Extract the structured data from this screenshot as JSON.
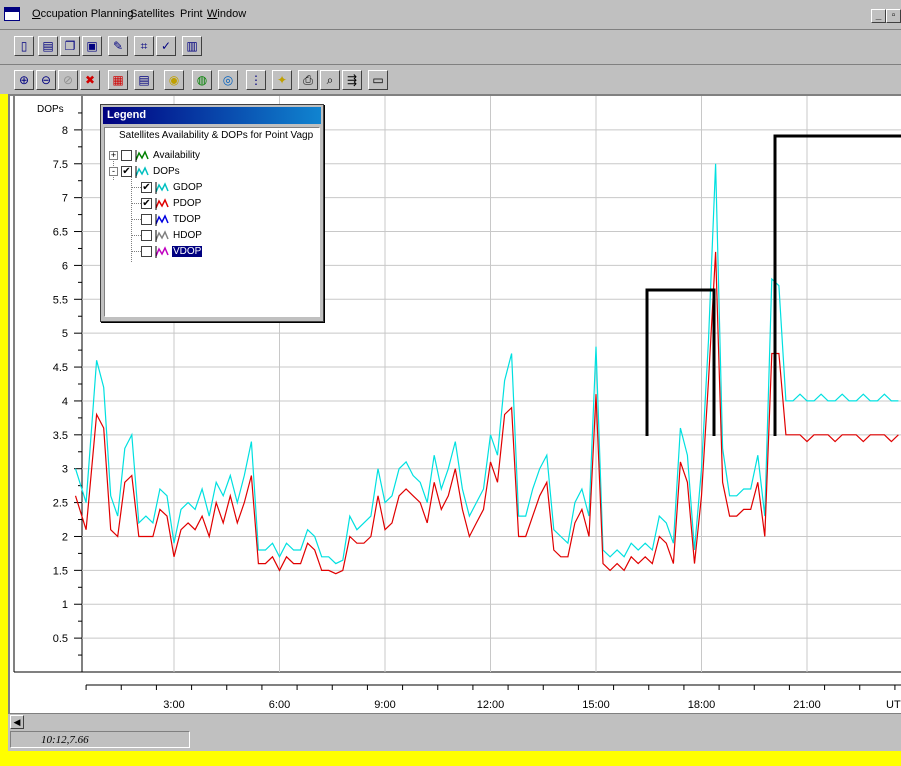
{
  "menubar": {
    "items": [
      "Occupation Planning",
      "Satellites",
      "Print",
      "Window"
    ]
  },
  "toolbar1": {
    "buttons": [
      "new-document-icon",
      "open-folder-icon",
      "copy-icon",
      "paste-icon",
      "edit-pen-icon",
      "satellite-grid-icon",
      "satellite-check-icon",
      "document-list-icon"
    ]
  },
  "toolbar2": {
    "buttons": [
      "zoom-in-icon",
      "zoom-out-icon",
      "zoom-disabled-icon",
      "delete-x-icon",
      "grid-icon",
      "report-icon",
      "sky-plot-icon",
      "elevation-icon",
      "globe-icon",
      "availability-icon",
      "dop-chart-icon",
      "print-icon",
      "print-preview-icon",
      "export-icon",
      "page-icon"
    ]
  },
  "legend": {
    "title": "Legend",
    "heading": "Satellites Availability & DOPs for Point Vagp",
    "items": [
      {
        "label": "Availability",
        "checked": false,
        "expander": "+",
        "color": "#008000",
        "level": 0
      },
      {
        "label": "DOPs",
        "checked": true,
        "expander": "-",
        "color": "#00c0c0",
        "level": 0
      },
      {
        "label": "GDOP",
        "checked": true,
        "color": "#00c0c0",
        "level": 1
      },
      {
        "label": "PDOP",
        "checked": true,
        "color": "#e00000",
        "level": 1
      },
      {
        "label": "TDOP",
        "checked": false,
        "color": "#0000e0",
        "level": 1
      },
      {
        "label": "HDOP",
        "checked": false,
        "color": "#808080",
        "level": 1
      },
      {
        "label": "VDOP",
        "checked": false,
        "color": "#c000c0",
        "level": 1,
        "selected": true
      }
    ]
  },
  "status": {
    "coords": "10:12,7.66"
  },
  "chart_data": {
    "type": "line",
    "ylabel": "DOPs",
    "ylim": [
      0,
      8.5
    ],
    "yticks": [
      "0.5",
      "1",
      "1.5",
      "2",
      "2.5",
      "3",
      "3.5",
      "4",
      "4.5",
      "5",
      "5.5",
      "6",
      "6.5",
      "7",
      "7.5",
      "8"
    ],
    "xlim": [
      0.2,
      23.6
    ],
    "xticks": [
      "3:00",
      "6:00",
      "9:00",
      "12:00",
      "15:00",
      "18:00",
      "21:00"
    ],
    "xtick_overflow": "UT",
    "grid": true,
    "series": [
      {
        "name": "GDOP",
        "color": "#00e0e0",
        "x": [
          0.2,
          0.5,
          0.8,
          1.0,
          1.2,
          1.4,
          1.6,
          1.8,
          2.0,
          2.2,
          2.4,
          2.6,
          2.8,
          3.0,
          3.2,
          3.4,
          3.6,
          3.8,
          4.0,
          4.2,
          4.4,
          4.6,
          4.8,
          5.0,
          5.2,
          5.4,
          5.6,
          5.8,
          6.0,
          6.2,
          6.4,
          6.6,
          6.8,
          7.0,
          7.2,
          7.4,
          7.6,
          7.8,
          8.0,
          8.2,
          8.4,
          8.6,
          8.8,
          9.0,
          9.2,
          9.4,
          9.6,
          9.8,
          10.0,
          10.2,
          10.4,
          10.6,
          10.8,
          11.0,
          11.2,
          11.4,
          11.6,
          11.8,
          12.0,
          12.2,
          12.4,
          12.6,
          12.8,
          13.0,
          13.2,
          13.4,
          13.6,
          13.8,
          14.0,
          14.2,
          14.4,
          14.6,
          14.8,
          15.0,
          15.2,
          15.4,
          15.6,
          15.8,
          16.0,
          16.2,
          16.4,
          16.6,
          16.8,
          17.0,
          17.2,
          17.4,
          17.6,
          17.8,
          18.0,
          18.2,
          18.4,
          18.6,
          18.8,
          19.0,
          19.2,
          19.4,
          19.6,
          19.8,
          20.0,
          20.2,
          20.4,
          20.6,
          20.8,
          21.0,
          21.2,
          21.4,
          21.6,
          21.8,
          22.0,
          22.2,
          22.4,
          22.6,
          22.8,
          23.0,
          23.2,
          23.4,
          23.6
        ],
        "y": [
          3.0,
          2.5,
          4.6,
          4.2,
          2.6,
          2.3,
          3.3,
          3.5,
          2.2,
          2.3,
          2.2,
          2.7,
          2.6,
          1.9,
          2.4,
          2.5,
          2.4,
          2.7,
          2.3,
          2.8,
          2.6,
          2.9,
          2.5,
          2.9,
          3.4,
          1.8,
          1.8,
          1.9,
          1.7,
          1.9,
          1.8,
          1.8,
          2.1,
          2.0,
          1.7,
          1.7,
          1.6,
          1.65,
          2.3,
          2.1,
          2.2,
          2.3,
          3.0,
          2.5,
          2.6,
          3.0,
          3.1,
          2.9,
          2.8,
          2.5,
          3.2,
          2.7,
          3.0,
          3.4,
          2.7,
          2.3,
          2.5,
          2.7,
          3.5,
          3.2,
          4.3,
          4.7,
          2.3,
          2.3,
          2.7,
          3.0,
          3.2,
          2.1,
          2.0,
          1.9,
          2.5,
          2.7,
          2.3,
          4.8,
          1.8,
          1.7,
          1.8,
          1.7,
          1.9,
          1.8,
          1.9,
          1.8,
          2.3,
          2.2,
          1.9,
          3.6,
          3.2,
          1.8,
          3.0,
          4.9,
          7.5,
          3.3,
          2.6,
          2.6,
          2.7,
          2.7,
          3.2,
          2.3,
          5.8,
          5.7,
          4.0,
          4.0,
          4.1,
          4.0,
          4.0,
          4.1,
          4.0,
          4.0,
          4.1,
          4.0,
          4.0,
          4.1,
          4.0,
          4.0,
          4.1,
          4.0,
          4.0
        ]
      },
      {
        "name": "PDOP",
        "color": "#e00000",
        "x": [
          0.2,
          0.5,
          0.8,
          1.0,
          1.2,
          1.4,
          1.6,
          1.8,
          2.0,
          2.2,
          2.4,
          2.6,
          2.8,
          3.0,
          3.2,
          3.4,
          3.6,
          3.8,
          4.0,
          4.2,
          4.4,
          4.6,
          4.8,
          5.0,
          5.2,
          5.4,
          5.6,
          5.8,
          6.0,
          6.2,
          6.4,
          6.6,
          6.8,
          7.0,
          7.2,
          7.4,
          7.6,
          7.8,
          8.0,
          8.2,
          8.4,
          8.6,
          8.8,
          9.0,
          9.2,
          9.4,
          9.6,
          9.8,
          10.0,
          10.2,
          10.4,
          10.6,
          10.8,
          11.0,
          11.2,
          11.4,
          11.6,
          11.8,
          12.0,
          12.2,
          12.4,
          12.6,
          12.8,
          13.0,
          13.2,
          13.4,
          13.6,
          13.8,
          14.0,
          14.2,
          14.4,
          14.6,
          14.8,
          15.0,
          15.2,
          15.4,
          15.6,
          15.8,
          16.0,
          16.2,
          16.4,
          16.6,
          16.8,
          17.0,
          17.2,
          17.4,
          17.6,
          17.8,
          18.0,
          18.2,
          18.4,
          18.6,
          18.8,
          19.0,
          19.2,
          19.4,
          19.6,
          19.8,
          20.0,
          20.2,
          20.4,
          20.6,
          20.8,
          21.0,
          21.2,
          21.4,
          21.6,
          21.8,
          22.0,
          22.2,
          22.4,
          22.6,
          22.8,
          23.0,
          23.2,
          23.4,
          23.6
        ],
        "y": [
          2.6,
          2.1,
          3.8,
          3.6,
          2.1,
          2.0,
          2.8,
          2.9,
          2.0,
          2.0,
          2.0,
          2.4,
          2.3,
          1.7,
          2.1,
          2.2,
          2.1,
          2.3,
          2.0,
          2.5,
          2.2,
          2.6,
          2.2,
          2.5,
          2.9,
          1.6,
          1.6,
          1.7,
          1.5,
          1.7,
          1.6,
          1.6,
          1.9,
          1.8,
          1.5,
          1.5,
          1.45,
          1.5,
          2.0,
          1.9,
          1.9,
          2.0,
          2.6,
          2.1,
          2.2,
          2.6,
          2.7,
          2.6,
          2.5,
          2.2,
          2.8,
          2.4,
          2.6,
          3.0,
          2.4,
          2.0,
          2.2,
          2.4,
          3.1,
          2.8,
          3.8,
          3.9,
          2.0,
          2.0,
          2.3,
          2.6,
          2.8,
          1.8,
          1.7,
          1.7,
          2.2,
          2.4,
          2.0,
          4.1,
          1.6,
          1.5,
          1.6,
          1.5,
          1.7,
          1.6,
          1.7,
          1.6,
          2.0,
          1.9,
          1.6,
          3.1,
          2.8,
          1.6,
          2.6,
          4.3,
          6.2,
          2.8,
          2.3,
          2.3,
          2.4,
          2.4,
          2.8,
          2.0,
          4.7,
          4.7,
          3.5,
          3.5,
          3.5,
          3.4,
          3.5,
          3.5,
          3.5,
          3.4,
          3.5,
          3.5,
          3.5,
          3.4,
          3.5,
          3.5,
          3.5,
          3.4,
          3.5
        ]
      }
    ]
  }
}
